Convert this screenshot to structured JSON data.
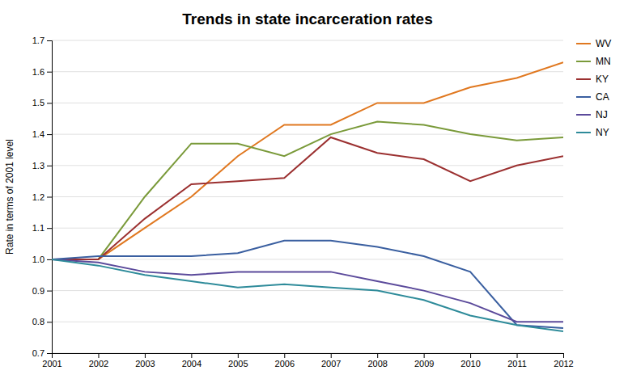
{
  "chart_data": {
    "type": "line",
    "title": "Trends in state incarceration rates",
    "ylabel": "Rate in terms of 2001 level",
    "x": [
      2001,
      2002,
      2003,
      2004,
      2005,
      2006,
      2007,
      2008,
      2009,
      2010,
      2011,
      2012
    ],
    "xlim": [
      2001,
      2012
    ],
    "xticks": [
      2001,
      2002,
      2003,
      2004,
      2005,
      2006,
      2007,
      2008,
      2009,
      2010,
      2011,
      2012
    ],
    "ylim": [
      0.7,
      1.7
    ],
    "yticks": [
      0.7,
      0.8,
      0.9,
      {
        "value": 1.0,
        "label": "1.0"
      },
      1.1,
      1.2,
      1.3,
      1.4,
      1.5,
      1.6,
      1.7
    ],
    "grid": true,
    "legend": "right",
    "series": [
      {
        "name": "WV",
        "color": "#E07820",
        "values": [
          1.0,
          1.0,
          1.1,
          1.2,
          1.33,
          1.43,
          1.43,
          1.5,
          1.5,
          1.55,
          1.58,
          1.63
        ]
      },
      {
        "name": "MN",
        "color": "#7A9A3A",
        "values": [
          1.0,
          1.0,
          1.2,
          1.37,
          1.37,
          1.33,
          1.4,
          1.44,
          1.43,
          1.4,
          1.38,
          1.39
        ]
      },
      {
        "name": "KY",
        "color": "#9B3030",
        "values": [
          1.0,
          1.0,
          1.13,
          1.24,
          1.25,
          1.26,
          1.39,
          1.34,
          1.32,
          1.25,
          1.3,
          1.33
        ]
      },
      {
        "name": "CA",
        "color": "#3A5FA0",
        "values": [
          1.0,
          1.01,
          1.01,
          1.01,
          1.02,
          1.06,
          1.06,
          1.04,
          1.01,
          0.96,
          0.79,
          0.78
        ]
      },
      {
        "name": "NJ",
        "color": "#5B4A9B",
        "values": [
          1.0,
          0.99,
          0.96,
          0.95,
          0.96,
          0.96,
          0.96,
          0.93,
          0.9,
          0.86,
          0.8,
          0.8
        ]
      },
      {
        "name": "NY",
        "color": "#2E8B9A",
        "values": [
          1.0,
          0.98,
          0.95,
          0.93,
          0.91,
          0.92,
          0.91,
          0.9,
          0.87,
          0.82,
          0.79,
          0.77
        ]
      }
    ]
  }
}
